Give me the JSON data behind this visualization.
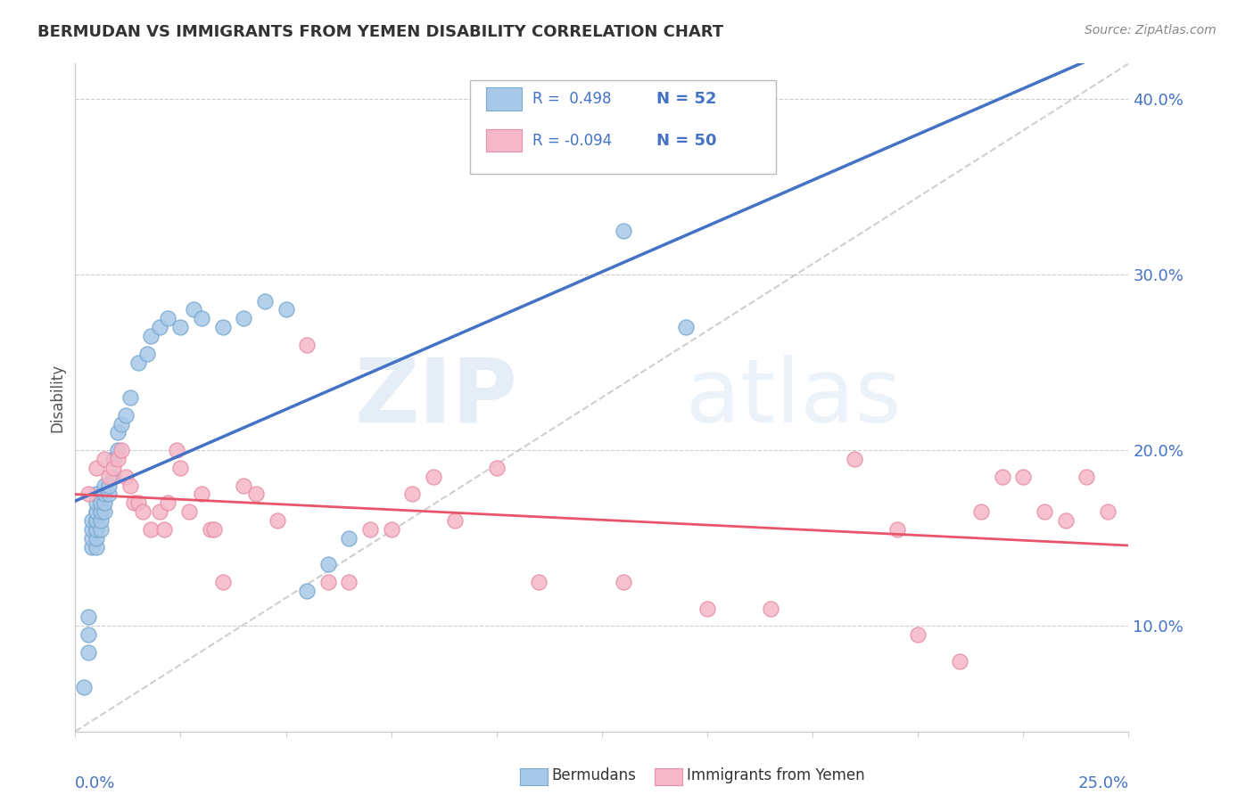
{
  "title": "BERMUDAN VS IMMIGRANTS FROM YEMEN DISABILITY CORRELATION CHART",
  "source": "Source: ZipAtlas.com",
  "ylabel": "Disability",
  "xlim": [
    0.0,
    0.25
  ],
  "ylim": [
    0.04,
    0.42
  ],
  "yticks": [
    0.1,
    0.2,
    0.3,
    0.4
  ],
  "ytick_labels": [
    "10.0%",
    "20.0%",
    "30.0%",
    "40.0%"
  ],
  "xticks": [
    0.0,
    0.025,
    0.05,
    0.075,
    0.1,
    0.125,
    0.15,
    0.175,
    0.2,
    0.225,
    0.25
  ],
  "blue_scatter_color": "#A8C8E8",
  "pink_scatter_color": "#F5B8C8",
  "blue_scatter_edge": "#7AAAD0",
  "pink_scatter_edge": "#E890A8",
  "blue_line_color": "#4472C4",
  "pink_line_color": "#E8556A",
  "trend_line_color": "#BBBBBB",
  "legend_R1": "R =  0.498",
  "legend_N1": "N = 52",
  "legend_R2": "R = -0.094",
  "legend_N2": "N = 50",
  "bermudan_x": [
    0.002,
    0.003,
    0.003,
    0.003,
    0.004,
    0.004,
    0.004,
    0.004,
    0.005,
    0.005,
    0.005,
    0.005,
    0.005,
    0.005,
    0.005,
    0.005,
    0.005,
    0.005,
    0.006,
    0.006,
    0.006,
    0.006,
    0.007,
    0.007,
    0.007,
    0.007,
    0.008,
    0.008,
    0.009,
    0.009,
    0.01,
    0.01,
    0.011,
    0.012,
    0.013,
    0.015,
    0.017,
    0.018,
    0.02,
    0.022,
    0.025,
    0.028,
    0.03,
    0.035,
    0.04,
    0.045,
    0.05,
    0.055,
    0.06,
    0.065,
    0.13,
    0.145
  ],
  "bermudan_y": [
    0.065,
    0.085,
    0.095,
    0.105,
    0.145,
    0.15,
    0.155,
    0.16,
    0.145,
    0.15,
    0.155,
    0.155,
    0.16,
    0.16,
    0.165,
    0.165,
    0.17,
    0.175,
    0.155,
    0.16,
    0.165,
    0.17,
    0.165,
    0.17,
    0.175,
    0.18,
    0.175,
    0.18,
    0.185,
    0.195,
    0.2,
    0.21,
    0.215,
    0.22,
    0.23,
    0.25,
    0.255,
    0.265,
    0.27,
    0.275,
    0.27,
    0.28,
    0.275,
    0.27,
    0.275,
    0.285,
    0.28,
    0.12,
    0.135,
    0.15,
    0.325,
    0.27
  ],
  "yemen_x": [
    0.003,
    0.005,
    0.007,
    0.008,
    0.009,
    0.01,
    0.011,
    0.012,
    0.013,
    0.014,
    0.015,
    0.016,
    0.018,
    0.02,
    0.021,
    0.022,
    0.024,
    0.025,
    0.027,
    0.03,
    0.032,
    0.033,
    0.035,
    0.04,
    0.043,
    0.048,
    0.055,
    0.06,
    0.065,
    0.07,
    0.075,
    0.08,
    0.085,
    0.09,
    0.1,
    0.11,
    0.13,
    0.15,
    0.165,
    0.185,
    0.195,
    0.2,
    0.21,
    0.215,
    0.22,
    0.225,
    0.23,
    0.235,
    0.24,
    0.245
  ],
  "yemen_y": [
    0.175,
    0.19,
    0.195,
    0.185,
    0.19,
    0.195,
    0.2,
    0.185,
    0.18,
    0.17,
    0.17,
    0.165,
    0.155,
    0.165,
    0.155,
    0.17,
    0.2,
    0.19,
    0.165,
    0.175,
    0.155,
    0.155,
    0.125,
    0.18,
    0.175,
    0.16,
    0.26,
    0.125,
    0.125,
    0.155,
    0.155,
    0.175,
    0.185,
    0.16,
    0.19,
    0.125,
    0.125,
    0.11,
    0.11,
    0.195,
    0.155,
    0.095,
    0.08,
    0.165,
    0.185,
    0.185,
    0.165,
    0.16,
    0.185,
    0.165
  ],
  "watermark_zip": "ZIP",
  "watermark_atlas": "atlas",
  "background_color": "#FFFFFF",
  "tick_color": "#4472C4",
  "grid_color": "#CCCCCC",
  "axis_color": "#CCCCCC"
}
